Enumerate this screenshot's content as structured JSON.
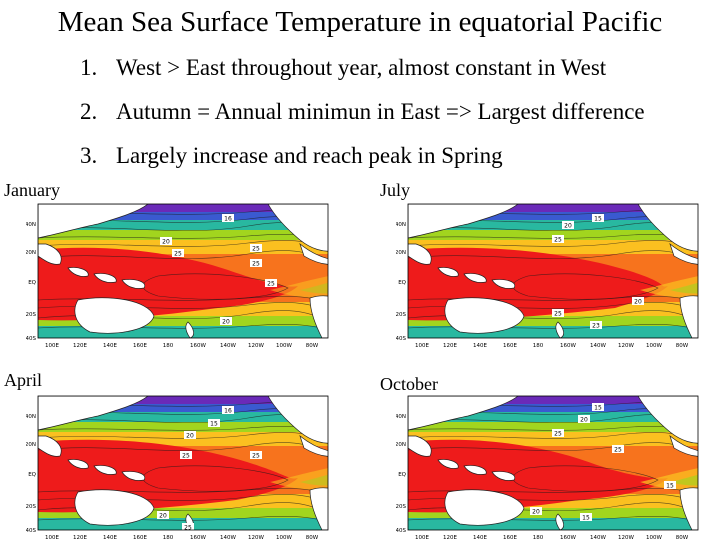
{
  "title": "Mean Sea Surface Temperature in equatorial Pacific",
  "points": [
    {
      "num": "1.",
      "text": "West > East  throughout year, almost constant in West"
    },
    {
      "num": "2.",
      "text": "Autumn = Annual minimun in East => Largest difference"
    },
    {
      "num": "3.",
      "text": "Largely increase and reach peak in Spring"
    }
  ],
  "lat_ticks": [
    "40N",
    "20N",
    "EQ",
    "20S",
    "40S"
  ],
  "lon_ticks": [
    "100E",
    "120E",
    "140E",
    "160E",
    "180",
    "160W",
    "140W",
    "120W",
    "100W",
    "80W"
  ],
  "panels": [
    {
      "label": "January",
      "contour_labels": [
        "16",
        "20",
        "25",
        "25",
        "25",
        "25",
        "20"
      ]
    },
    {
      "label": "July",
      "contour_labels": [
        "15",
        "20",
        "25",
        "25",
        "23",
        "20"
      ]
    },
    {
      "label": "April",
      "contour_labels": [
        "16",
        "15",
        "20",
        "25",
        "25",
        "20",
        "25"
      ]
    },
    {
      "label": "October",
      "contour_labels": [
        "15",
        "20",
        "25",
        "25",
        "15",
        "20",
        "15"
      ]
    }
  ],
  "colors": {
    "warm_pool": "#ee1b1b",
    "warm": "#f7731d",
    "mid": "#fbc020",
    "cool": "#a2d51e",
    "cold": "#29b8a0",
    "polar": "#3a5ad0",
    "arctic": "#6a2ab8",
    "land": "#ffffff"
  }
}
